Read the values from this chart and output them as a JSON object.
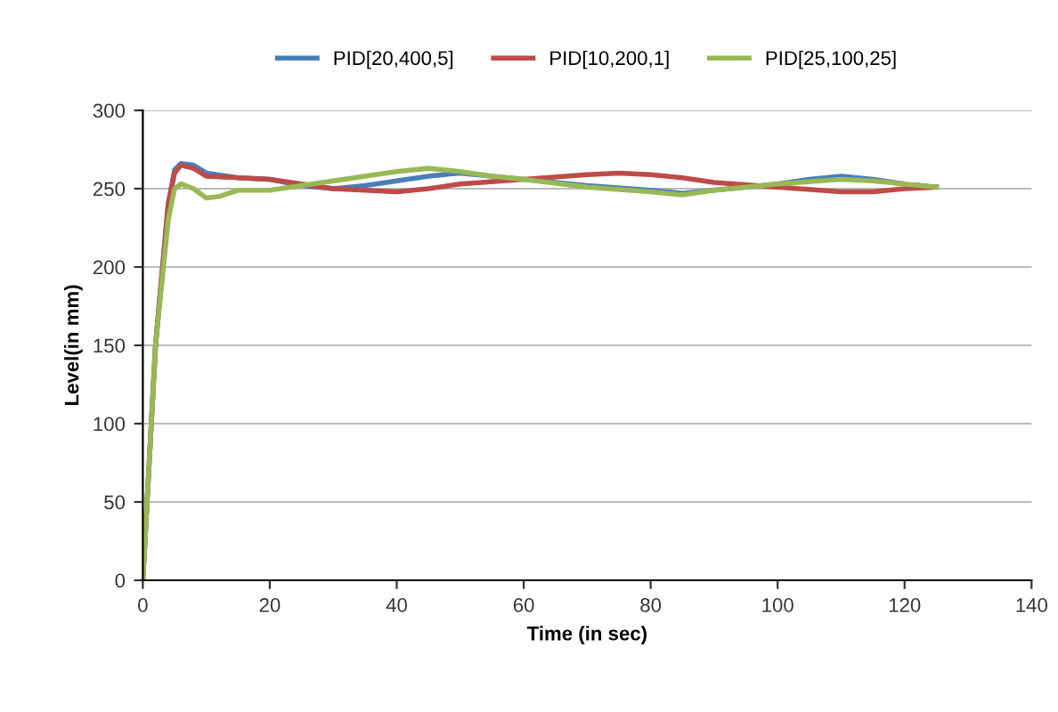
{
  "chart_data": {
    "type": "line",
    "xlabel": "Time (in sec)",
    "ylabel": "Level(in mm)",
    "xlim": [
      0,
      140
    ],
    "xticks": [
      0,
      20,
      40,
      60,
      80,
      100,
      120,
      140
    ],
    "ylim": [
      0,
      300
    ],
    "yticks": [
      0,
      50,
      100,
      150,
      200,
      250,
      300
    ],
    "grid": "y",
    "legend": "top",
    "series": [
      {
        "name": "PID[20,400,5]",
        "color": "#4a7ebb",
        "x": [
          0,
          2,
          4,
          5,
          6,
          8,
          10,
          15,
          20,
          25,
          30,
          35,
          40,
          45,
          50,
          55,
          60,
          70,
          80,
          85,
          90,
          100,
          105,
          110,
          115,
          120,
          125
        ],
        "values": [
          0,
          150,
          240,
          262,
          266,
          265,
          260,
          257,
          256,
          252,
          250,
          252,
          255,
          258,
          260,
          258,
          256,
          252,
          249,
          247,
          249,
          253,
          256,
          258,
          256,
          253,
          251
        ]
      },
      {
        "name": "PID[10,200,1]",
        "color": "#be4b48",
        "x": [
          0,
          2,
          4,
          5,
          6,
          8,
          10,
          20,
          25,
          30,
          40,
          45,
          50,
          60,
          70,
          75,
          80,
          85,
          90,
          100,
          110,
          115,
          120,
          125
        ],
        "values": [
          0,
          150,
          240,
          260,
          265,
          263,
          258,
          256,
          253,
          250,
          248,
          250,
          253,
          256,
          259,
          260,
          259,
          257,
          254,
          251,
          248,
          248,
          250,
          251
        ]
      },
      {
        "name": "PID[25,100,25]",
        "color": "#98b954",
        "x": [
          0,
          2,
          4,
          5,
          6,
          8,
          10,
          12,
          15,
          20,
          25,
          30,
          35,
          40,
          45,
          50,
          55,
          60,
          70,
          80,
          85,
          90,
          100,
          110,
          115,
          120,
          125
        ],
        "values": [
          0,
          150,
          230,
          250,
          253,
          250,
          244,
          245,
          249,
          249,
          252,
          255,
          258,
          261,
          263,
          261,
          258,
          256,
          251,
          248,
          246,
          249,
          253,
          256,
          255,
          253,
          251
        ]
      }
    ]
  }
}
